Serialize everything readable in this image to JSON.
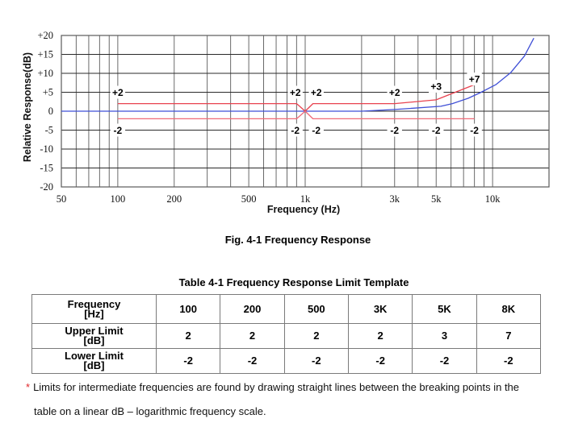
{
  "chart_data": {
    "type": "line",
    "title": "Fig. 4-1 Frequency Response",
    "xlabel": "Frequency (Hz)",
    "ylabel": "Relative Response(dB)",
    "xscale": "log",
    "xlim": [
      50,
      20000
    ],
    "ylim": [
      -20,
      20
    ],
    "grid": true,
    "legend": null,
    "x_ticks": [
      {
        "value": 50,
        "label": "50"
      },
      {
        "value": 100,
        "label": "100"
      },
      {
        "value": 200,
        "label": "200"
      },
      {
        "value": 500,
        "label": "500"
      },
      {
        "value": 1000,
        "label": "1k"
      },
      {
        "value": 3000,
        "label": "3k"
      },
      {
        "value": 5000,
        "label": "5k"
      },
      {
        "value": 10000,
        "label": "10k"
      }
    ],
    "y_ticks": [
      {
        "value": 20,
        "label": "+20"
      },
      {
        "value": 15,
        "label": "+15"
      },
      {
        "value": 10,
        "label": "+10"
      },
      {
        "value": 5,
        "label": "+5"
      },
      {
        "value": 0,
        "label": "0"
      },
      {
        "value": -5,
        "label": "-5"
      },
      {
        "value": -10,
        "label": "-10"
      },
      {
        "value": -15,
        "label": "-15"
      },
      {
        "value": -20,
        "label": "-20"
      }
    ],
    "x_gridlines": [
      60,
      70,
      80,
      90,
      100,
      200,
      300,
      400,
      500,
      600,
      700,
      800,
      900,
      1000,
      2000,
      3000,
      4000,
      5000,
      6000,
      7000,
      8000,
      9000,
      10000
    ],
    "series": [
      {
        "name": "Measured response",
        "color": "#3f4fd6",
        "x": [
          50,
          2000,
          3000,
          5300,
          6100,
          7400,
          8600,
          10400,
          12500,
          14800,
          16600
        ],
        "y": [
          0,
          0,
          0.45,
          1.3,
          2.0,
          3.4,
          4.9,
          7.0,
          10.2,
          14.6,
          19.3
        ]
      },
      {
        "name": "Upper limit",
        "color": "#e8424f",
        "x": [
          100,
          900,
          1000,
          1100,
          3000,
          5000,
          8000
        ],
        "y": [
          2,
          2,
          0,
          2,
          2,
          3,
          7
        ]
      },
      {
        "name": "Lower limit",
        "color": "#f06a78",
        "x": [
          100,
          900,
          1000,
          1100,
          8000
        ],
        "y": [
          -2,
          -2,
          0,
          -2,
          -2
        ]
      }
    ],
    "annotations": [
      {
        "text": "+2",
        "x": 100,
        "y": 5
      },
      {
        "text": "-2",
        "x": 100,
        "y": -5
      },
      {
        "text": "+2",
        "x": 885,
        "y": 5
      },
      {
        "text": "+2",
        "x": 1146,
        "y": 5
      },
      {
        "text": "-2",
        "x": 885,
        "y": -5
      },
      {
        "text": "-2",
        "x": 1146,
        "y": -5
      },
      {
        "text": "+2",
        "x": 3000,
        "y": 5
      },
      {
        "text": "+3",
        "x": 5000,
        "y": 6.6
      },
      {
        "text": "+7",
        "x": 8000,
        "y": 8.5
      },
      {
        "text": "-2",
        "x": 3000,
        "y": -5
      },
      {
        "text": "-2",
        "x": 5000,
        "y": -5
      },
      {
        "text": "-2",
        "x": 8000,
        "y": -5
      }
    ]
  },
  "figure": {
    "caption": "Fig. 4-1 Frequency Response"
  },
  "table": {
    "title": "Table 4-1 Frequency Response Limit Template",
    "rows": [
      {
        "header": [
          "Frequency",
          "[Hz]"
        ],
        "cells": [
          "100",
          "200",
          "500",
          "3K",
          "5K",
          "8K"
        ]
      },
      {
        "header": [
          "Upper Limit",
          "[dB]"
        ],
        "cells": [
          "2",
          "2",
          "2",
          "2",
          "3",
          "7"
        ]
      },
      {
        "header": [
          "Lower Limit",
          "[dB]"
        ],
        "cells": [
          "-2",
          "-2",
          "-2",
          "-2",
          "-2",
          "-2"
        ]
      }
    ]
  },
  "footnote": {
    "marker": "*",
    "marker_color": "#e0262a",
    "line1": "Limits for intermediate frequencies are found by drawing straight lines between the breaking points in the",
    "line2": "table on a linear dB – logarithmic frequency scale."
  }
}
